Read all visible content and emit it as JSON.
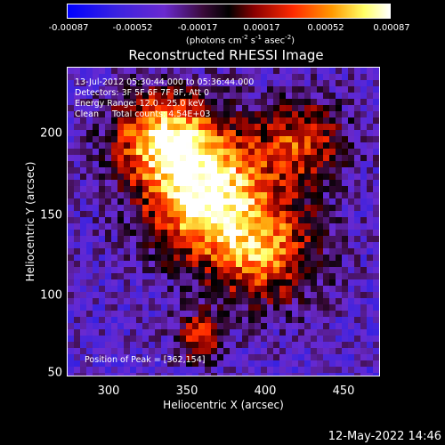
{
  "chart_data": {
    "type": "heatmap",
    "title": "Reconstructed RHESSI Image",
    "xlabel": "Heliocentric X (arcsec)",
    "ylabel": "Heliocentric Y (arcsec)",
    "xlim": [
      272,
      468
    ],
    "ylim": [
      48,
      228
    ],
    "x_ticks": [
      "300",
      "350",
      "400",
      "450"
    ],
    "y_ticks": [
      "50",
      "100",
      "150",
      "200"
    ],
    "colorbar": {
      "ticks": [
        "-0.00087",
        "-0.00052",
        "-0.00017",
        "0.00017",
        "0.00052",
        "0.00087"
      ],
      "range": [
        -0.00087,
        0.00087
      ],
      "colormap": [
        "#0000ff",
        "#7b2fd4",
        "#3a0a3a",
        "#000000",
        "#8b0000",
        "#ff2a00",
        "#ff9900",
        "#ffff66",
        "#ffffff"
      ]
    },
    "unit_prefix": "(photons cm",
    "unit_sup1": "-2",
    "unit_mid": " s",
    "unit_sup2": "-1",
    "unit_mid2": " asec",
    "unit_sup3": "-2",
    "unit_suffix": ")",
    "peak": {
      "x": 362,
      "y": 154
    },
    "sources": [
      {
        "x": 357,
        "y": 157,
        "sx": 28,
        "sy": 26,
        "amp": 0.00087
      },
      {
        "x": 330,
        "y": 190,
        "sx": 22,
        "sy": 18,
        "amp": 0.0005
      },
      {
        "x": 395,
        "y": 120,
        "sx": 26,
        "sy": 22,
        "amp": 0.00045
      },
      {
        "x": 420,
        "y": 185,
        "sx": 20,
        "sy": 18,
        "amp": 0.0003
      },
      {
        "x": 355,
        "y": 70,
        "sx": 10,
        "sy": 10,
        "amp": 0.00035
      }
    ],
    "background_level": -0.0004
  },
  "annotations": {
    "line1": "13-Jul-2012 05:30:44.000 to 05:36:44.000",
    "line2": "Detectors: 3F 5F 6F 7F 8F, Att 0",
    "line3": "Energy Range: 12.0 - 25.0 keV",
    "line4": "Clean     Total counts: 4.54E+03",
    "peak_label": "Position of Peak = [362,154]"
  },
  "datestamp": "12-May-2022 14:46"
}
